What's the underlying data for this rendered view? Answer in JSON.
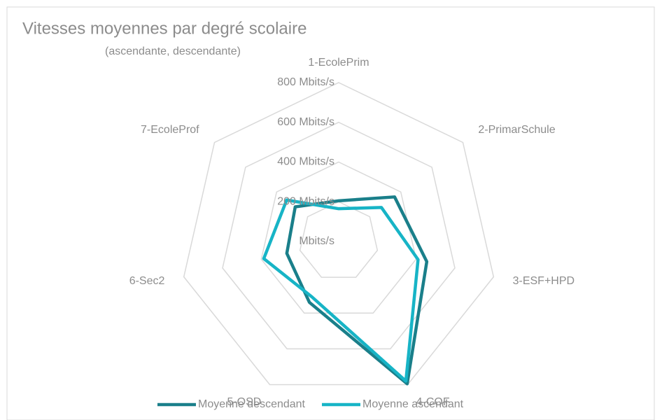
{
  "chart_data": {
    "type": "radar",
    "title": "Vitesses moyennes par degré scolaire",
    "subtitle": "(ascendante, descendante)",
    "categories": [
      "1-EcolePrim",
      "2-PrimarSchule",
      "3-ESF+HPD",
      "4-COF",
      "5-OSD",
      "6-Sec2",
      "7-EcoleProf"
    ],
    "series": [
      {
        "name": "Moyenne descendant",
        "color": "#1a7f8a",
        "values": [
          205,
          360,
          455,
          795,
          340,
          268,
          280
        ]
      },
      {
        "name": "Moyenne ascendant",
        "color": "#17b4c6",
        "values": [
          165,
          275,
          410,
          780,
          310,
          387,
          335
        ]
      }
    ],
    "ylim": [
      0,
      800
    ],
    "yticks": [
      {
        "value": 0,
        "label": "Mbits/s"
      },
      {
        "value": 200,
        "label": "200 Mbits/s"
      },
      {
        "value": 400,
        "label": "400 Mbits/s"
      },
      {
        "value": 600,
        "label": "600 Mbits/s"
      },
      {
        "value": 800,
        "label": "800 Mbits/s"
      }
    ],
    "grid": true,
    "legend": "bottom"
  }
}
